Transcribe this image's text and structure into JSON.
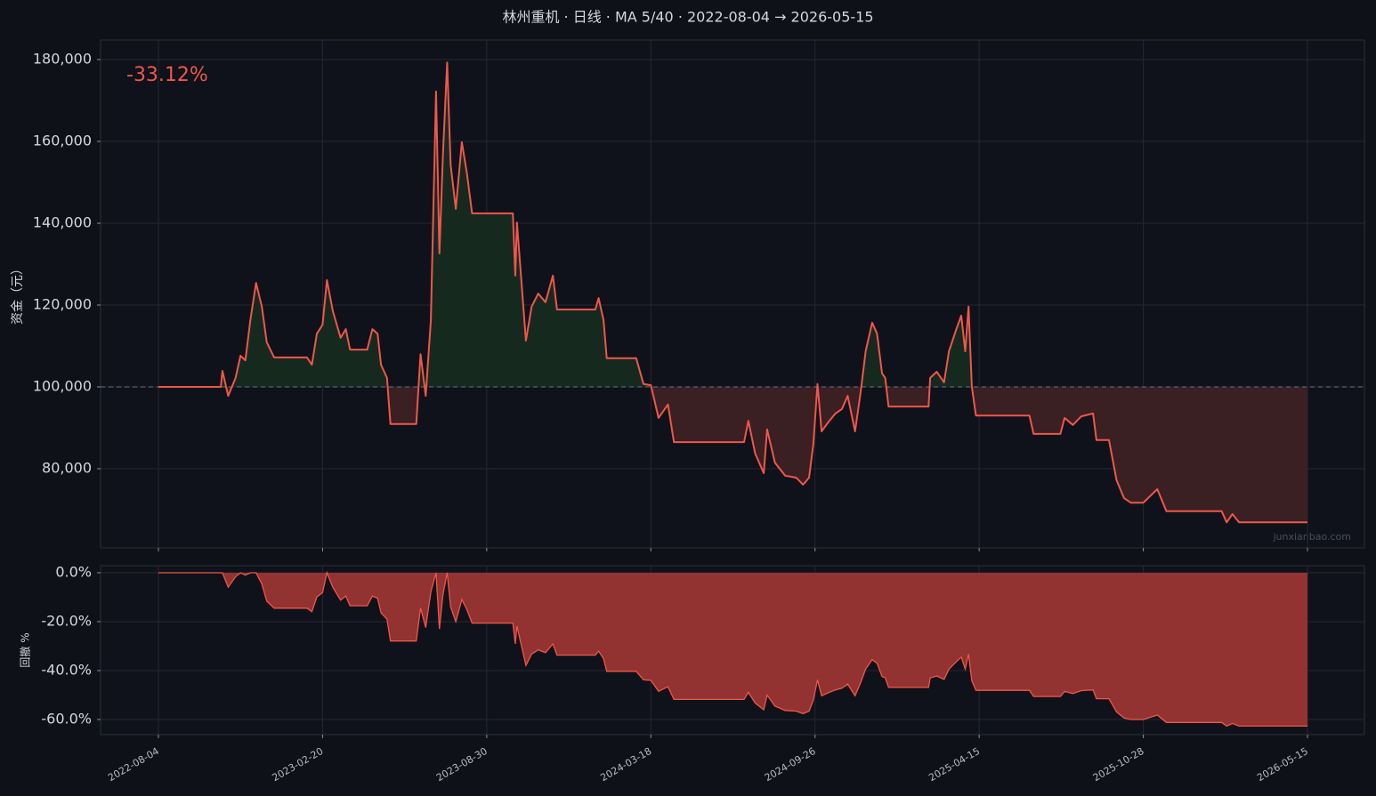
{
  "chart_data": [
    {
      "type": "line",
      "title": "林州重机 · 日线 · MA 5/40 · 2022-08-04 → 2026-05-15",
      "ylabel": "资金（元）",
      "annotation": "-33.12%",
      "watermark": "junxianbao.com",
      "baseline": 100000,
      "grid": true,
      "color": "#f0564b",
      "above_color": "#16291f",
      "below_color": "#3a1f23",
      "xlim": [
        "2022-05-25",
        "2026-07-23"
      ],
      "xticks": [
        "2022-08-04",
        "2023-02-20",
        "2023-08-30",
        "2024-03-18",
        "2024-09-26",
        "2025-04-15",
        "2025-10-28",
        "2026-05-15"
      ],
      "ylim": [
        60650,
        184780
      ],
      "yticks": [
        {
          "value": 80000,
          "label": "80,000"
        },
        {
          "value": 100000,
          "label": "100,000"
        },
        {
          "value": 120000,
          "label": "120,000"
        },
        {
          "value": 140000,
          "label": "140,000"
        },
        {
          "value": 160000,
          "label": "160,000"
        },
        {
          "value": 180000,
          "label": "180,000"
        }
      ],
      "x": [
        "2022-08-04",
        "2022-10-19",
        "2022-10-21",
        "2022-10-28",
        "2022-11-06",
        "2022-11-12",
        "2022-11-18",
        "2022-11-24",
        "2022-12-01",
        "2022-12-08",
        "2022-12-14",
        "2022-12-23",
        "2023-02-01",
        "2023-02-07",
        "2023-02-13",
        "2023-02-20",
        "2023-02-25",
        "2023-03-04",
        "2023-03-13",
        "2023-03-19",
        "2023-03-24",
        "2023-04-13",
        "2023-04-19",
        "2023-04-25",
        "2023-04-29",
        "2023-05-06",
        "2023-05-10",
        "2023-06-09",
        "2023-06-14",
        "2023-06-20",
        "2023-06-26",
        "2023-07-02",
        "2023-07-06",
        "2023-07-10",
        "2023-07-15",
        "2023-07-19",
        "2023-07-25",
        "2023-08-01",
        "2023-08-07",
        "2023-08-13",
        "2023-08-30",
        "2023-10-01",
        "2023-10-04",
        "2023-10-06",
        "2023-10-17",
        "2023-10-24",
        "2023-11-01",
        "2023-11-10",
        "2023-11-19",
        "2023-11-24",
        "2024-01-10",
        "2024-01-14",
        "2024-01-20",
        "2024-01-24",
        "2024-02-29",
        "2024-03-09",
        "2024-03-18",
        "2024-03-27",
        "2024-04-07",
        "2024-04-14",
        "2024-07-05",
        "2024-07-10",
        "2024-07-18",
        "2024-07-28",
        "2024-08-01",
        "2024-08-10",
        "2024-08-22",
        "2024-09-04",
        "2024-09-12",
        "2024-09-19",
        "2024-09-24",
        "2024-09-29",
        "2024-10-04",
        "2024-10-12",
        "2024-10-21",
        "2024-10-29",
        "2024-11-05",
        "2024-11-14",
        "2024-11-21",
        "2024-11-27",
        "2024-12-05",
        "2024-12-11",
        "2024-12-17",
        "2024-12-21",
        "2024-12-25",
        "2025-02-12",
        "2025-02-14",
        "2025-02-22",
        "2025-03-03",
        "2025-03-09",
        "2025-03-18",
        "2025-03-24",
        "2025-03-29",
        "2025-04-02",
        "2025-04-06",
        "2025-04-11",
        "2025-06-14",
        "2025-06-19",
        "2025-07-21",
        "2025-07-26",
        "2025-08-05",
        "2025-08-15",
        "2025-08-29",
        "2025-09-02",
        "2025-09-17",
        "2025-09-26",
        "2025-10-05",
        "2025-10-13",
        "2025-10-28",
        "2025-11-14",
        "2025-11-25",
        "2026-01-31",
        "2026-02-06",
        "2026-02-13",
        "2026-02-21",
        "2026-05-15"
      ],
      "values": [
        100000,
        100000,
        103900,
        97800,
        102200,
        107600,
        106500,
        116300,
        125400,
        119600,
        110900,
        107200,
        107200,
        105400,
        113000,
        115200,
        126100,
        118500,
        112000,
        114100,
        109100,
        109100,
        114100,
        113000,
        105400,
        102200,
        90900,
        90900,
        108000,
        97800,
        116300,
        172200,
        132600,
        156500,
        179300,
        154300,
        143500,
        159800,
        152200,
        142400,
        142400,
        142400,
        127200,
        140200,
        111300,
        119600,
        122800,
        120700,
        127200,
        118900,
        118900,
        121700,
        116300,
        107000,
        107000,
        100700,
        100400,
        92400,
        95700,
        86500,
        86500,
        91700,
        83700,
        78900,
        89600,
        81500,
        78300,
        77800,
        76100,
        77800,
        85900,
        100700,
        89100,
        91300,
        93500,
        94600,
        97800,
        89100,
        98900,
        108700,
        115700,
        113000,
        103300,
        102200,
        95200,
        95200,
        102200,
        103700,
        101100,
        108700,
        114100,
        117400,
        108700,
        119600,
        100000,
        93000,
        93000,
        88500,
        88500,
        92400,
        90700,
        92800,
        93500,
        87000,
        87000,
        77200,
        72800,
        71700,
        71700,
        75000,
        69600,
        69600,
        66880,
        68900,
        66880,
        66880
      ]
    },
    {
      "type": "area",
      "ylabel": "回撤 %",
      "grid": true,
      "color": "#f0564b",
      "fill": "#9a3533",
      "xlim": [
        "2022-05-25",
        "2026-07-23"
      ],
      "xticks": [
        "2022-08-04",
        "2023-02-20",
        "2023-08-30",
        "2024-03-18",
        "2024-09-26",
        "2025-04-15",
        "2025-10-28",
        "2026-05-15"
      ],
      "ylim": [
        -66.2,
        2.9
      ],
      "yticks": [
        {
          "value": -60,
          "label": "-60.0%"
        },
        {
          "value": -40,
          "label": "-40.0%"
        },
        {
          "value": -20,
          "label": "-20.0%"
        },
        {
          "value": 0,
          "label": "0.0%"
        }
      ],
      "x": [
        "2022-08-04",
        "2022-10-19",
        "2022-10-21",
        "2022-10-28",
        "2022-11-06",
        "2022-11-12",
        "2022-11-18",
        "2022-11-24",
        "2022-12-01",
        "2022-12-08",
        "2022-12-14",
        "2022-12-23",
        "2023-02-01",
        "2023-02-07",
        "2023-02-13",
        "2023-02-20",
        "2023-02-25",
        "2023-03-04",
        "2023-03-13",
        "2023-03-19",
        "2023-03-24",
        "2023-04-13",
        "2023-04-19",
        "2023-04-25",
        "2023-04-29",
        "2023-05-06",
        "2023-05-10",
        "2023-06-09",
        "2023-06-14",
        "2023-06-20",
        "2023-06-26",
        "2023-07-02",
        "2023-07-06",
        "2023-07-10",
        "2023-07-15",
        "2023-07-19",
        "2023-07-25",
        "2023-08-01",
        "2023-08-07",
        "2023-08-13",
        "2023-08-30",
        "2023-10-01",
        "2023-10-04",
        "2023-10-06",
        "2023-10-17",
        "2023-10-24",
        "2023-11-01",
        "2023-11-10",
        "2023-11-19",
        "2023-11-24",
        "2024-01-10",
        "2024-01-14",
        "2024-01-20",
        "2024-01-24",
        "2024-02-29",
        "2024-03-09",
        "2024-03-18",
        "2024-03-27",
        "2024-04-07",
        "2024-04-14",
        "2024-07-05",
        "2024-07-10",
        "2024-07-18",
        "2024-07-28",
        "2024-08-01",
        "2024-08-10",
        "2024-08-22",
        "2024-09-04",
        "2024-09-12",
        "2024-09-19",
        "2024-09-24",
        "2024-09-29",
        "2024-10-04",
        "2024-10-12",
        "2024-10-21",
        "2024-10-29",
        "2024-11-05",
        "2024-11-14",
        "2024-11-21",
        "2024-11-27",
        "2024-12-05",
        "2024-12-11",
        "2024-12-17",
        "2024-12-21",
        "2024-12-25",
        "2025-02-12",
        "2025-02-14",
        "2025-02-22",
        "2025-03-03",
        "2025-03-09",
        "2025-03-18",
        "2025-03-24",
        "2025-03-29",
        "2025-04-02",
        "2025-04-06",
        "2025-04-11",
        "2025-06-14",
        "2025-06-19",
        "2025-07-21",
        "2025-07-26",
        "2025-08-05",
        "2025-08-15",
        "2025-08-29",
        "2025-09-02",
        "2025-09-17",
        "2025-09-26",
        "2025-10-05",
        "2025-10-13",
        "2025-10-28",
        "2025-11-14",
        "2025-11-25",
        "2026-01-31",
        "2026-02-06",
        "2026-02-13",
        "2026-02-21",
        "2026-05-15"
      ],
      "values": [
        0,
        0,
        0,
        -5.9,
        -1.6,
        0,
        -1.0,
        0,
        0,
        -4.6,
        -11.6,
        -14.5,
        -14.5,
        -15.9,
        -9.9,
        -8.1,
        0,
        -6.0,
        -11.2,
        -9.5,
        -13.5,
        -13.5,
        -9.5,
        -10.4,
        -16.4,
        -19.0,
        -27.9,
        -27.9,
        -14.4,
        -22.4,
        -7.8,
        0,
        -23.0,
        -9.1,
        0,
        -13.9,
        -20.0,
        -10.9,
        -15.1,
        -20.6,
        -20.6,
        -20.6,
        -29.1,
        -21.8,
        -37.9,
        -33.3,
        -31.5,
        -32.7,
        -29.1,
        -33.7,
        -33.7,
        -32.1,
        -35.1,
        -40.3,
        -40.3,
        -43.8,
        -44.0,
        -48.5,
        -46.6,
        -51.8,
        -51.8,
        -48.9,
        -53.3,
        -56.0,
        -50.0,
        -54.5,
        -56.3,
        -56.6,
        -57.6,
        -56.6,
        -52.1,
        -43.8,
        -50.3,
        -49.1,
        -47.9,
        -47.2,
        -45.5,
        -50.3,
        -44.8,
        -39.4,
        -35.5,
        -37.0,
        -42.4,
        -43.0,
        -46.9,
        -46.9,
        -43.0,
        -42.2,
        -43.6,
        -39.4,
        -36.4,
        -34.5,
        -39.4,
        -33.3,
        -44.2,
        -48.1,
        -48.1,
        -50.6,
        -50.6,
        -48.5,
        -49.4,
        -48.2,
        -47.9,
        -51.5,
        -51.5,
        -56.9,
        -59.4,
        -60.0,
        -60.0,
        -58.2,
        -61.2,
        -61.2,
        -62.7,
        -61.6,
        -62.7,
        -62.7
      ]
    }
  ]
}
